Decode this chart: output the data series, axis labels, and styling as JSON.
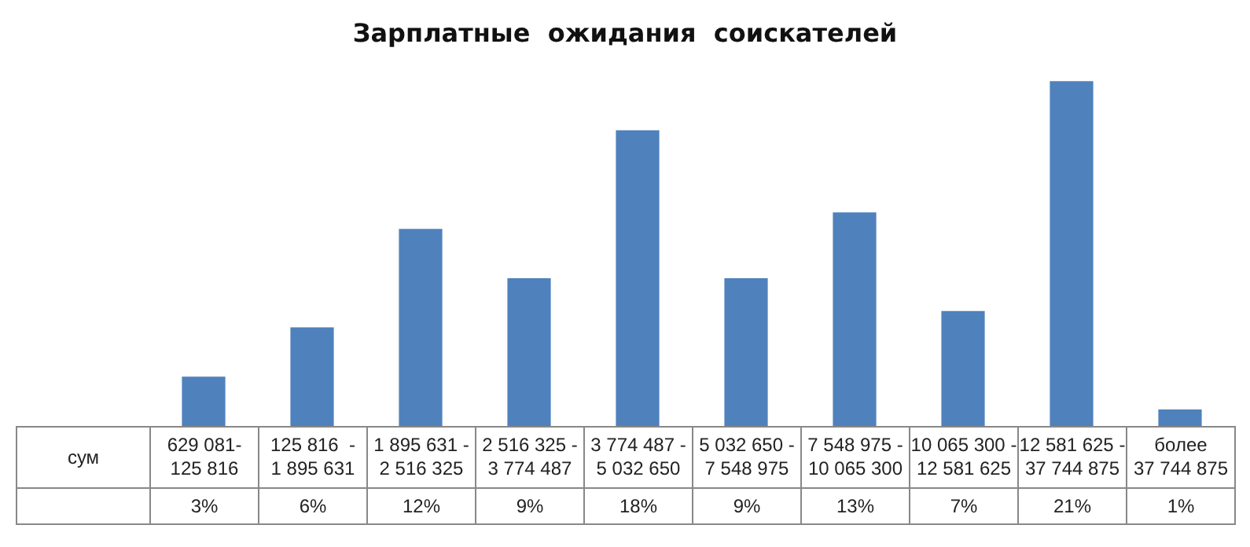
{
  "chart_data": {
    "type": "bar",
    "title": "Зарплатные  ожидания  соискателей",
    "xlabel": "сум",
    "categories": [
      "629 081-\n125 816",
      "125 816  -\n1 895 631",
      "1 895 631 -\n2 516 325",
      "2 516 325 -\n3 774 487",
      "3 774 487 -\n5 032 650",
      "5 032 650 -\n7 548 975",
      "7 548 975 -\n10 065 300",
      "10 065 300 -\n12 581 625",
      "12 581 625 -\n37 744 875",
      "более\n37 744 875"
    ],
    "values": [
      3,
      6,
      12,
      9,
      18,
      9,
      13,
      7,
      21,
      1
    ],
    "value_labels": [
      "3%",
      "6%",
      "12%",
      "9%",
      "18%",
      "9%",
      "13%",
      "7%",
      "21%",
      "1%"
    ],
    "color": "#4f81bd"
  }
}
